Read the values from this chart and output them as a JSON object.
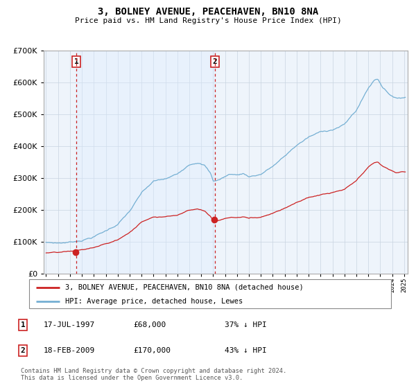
{
  "title": "3, BOLNEY AVENUE, PEACEHAVEN, BN10 8NA",
  "subtitle": "Price paid vs. HM Land Registry's House Price Index (HPI)",
  "legend_line1": "3, BOLNEY AVENUE, PEACEHAVEN, BN10 8NA (detached house)",
  "legend_line2": "HPI: Average price, detached house, Lewes",
  "sale1_date": "17-JUL-1997",
  "sale1_price": "£68,000",
  "sale1_hpi": "37% ↓ HPI",
  "sale1_year": 1997.54,
  "sale1_value": 68000,
  "sale2_date": "18-FEB-2009",
  "sale2_price": "£170,000",
  "sale2_hpi": "43% ↓ HPI",
  "sale2_year": 2009.13,
  "sale2_value": 170000,
  "footer": "Contains HM Land Registry data © Crown copyright and database right 2024.\nThis data is licensed under the Open Government Licence v3.0.",
  "hpi_color": "#74afd3",
  "price_color": "#cc2222",
  "shade_color": "#ddeeff",
  "background_color": "#ffffff",
  "plot_bg_color": "#eef4fb",
  "ylim": [
    0,
    700000
  ],
  "xlim_start": 1994.8,
  "xlim_end": 2025.3
}
